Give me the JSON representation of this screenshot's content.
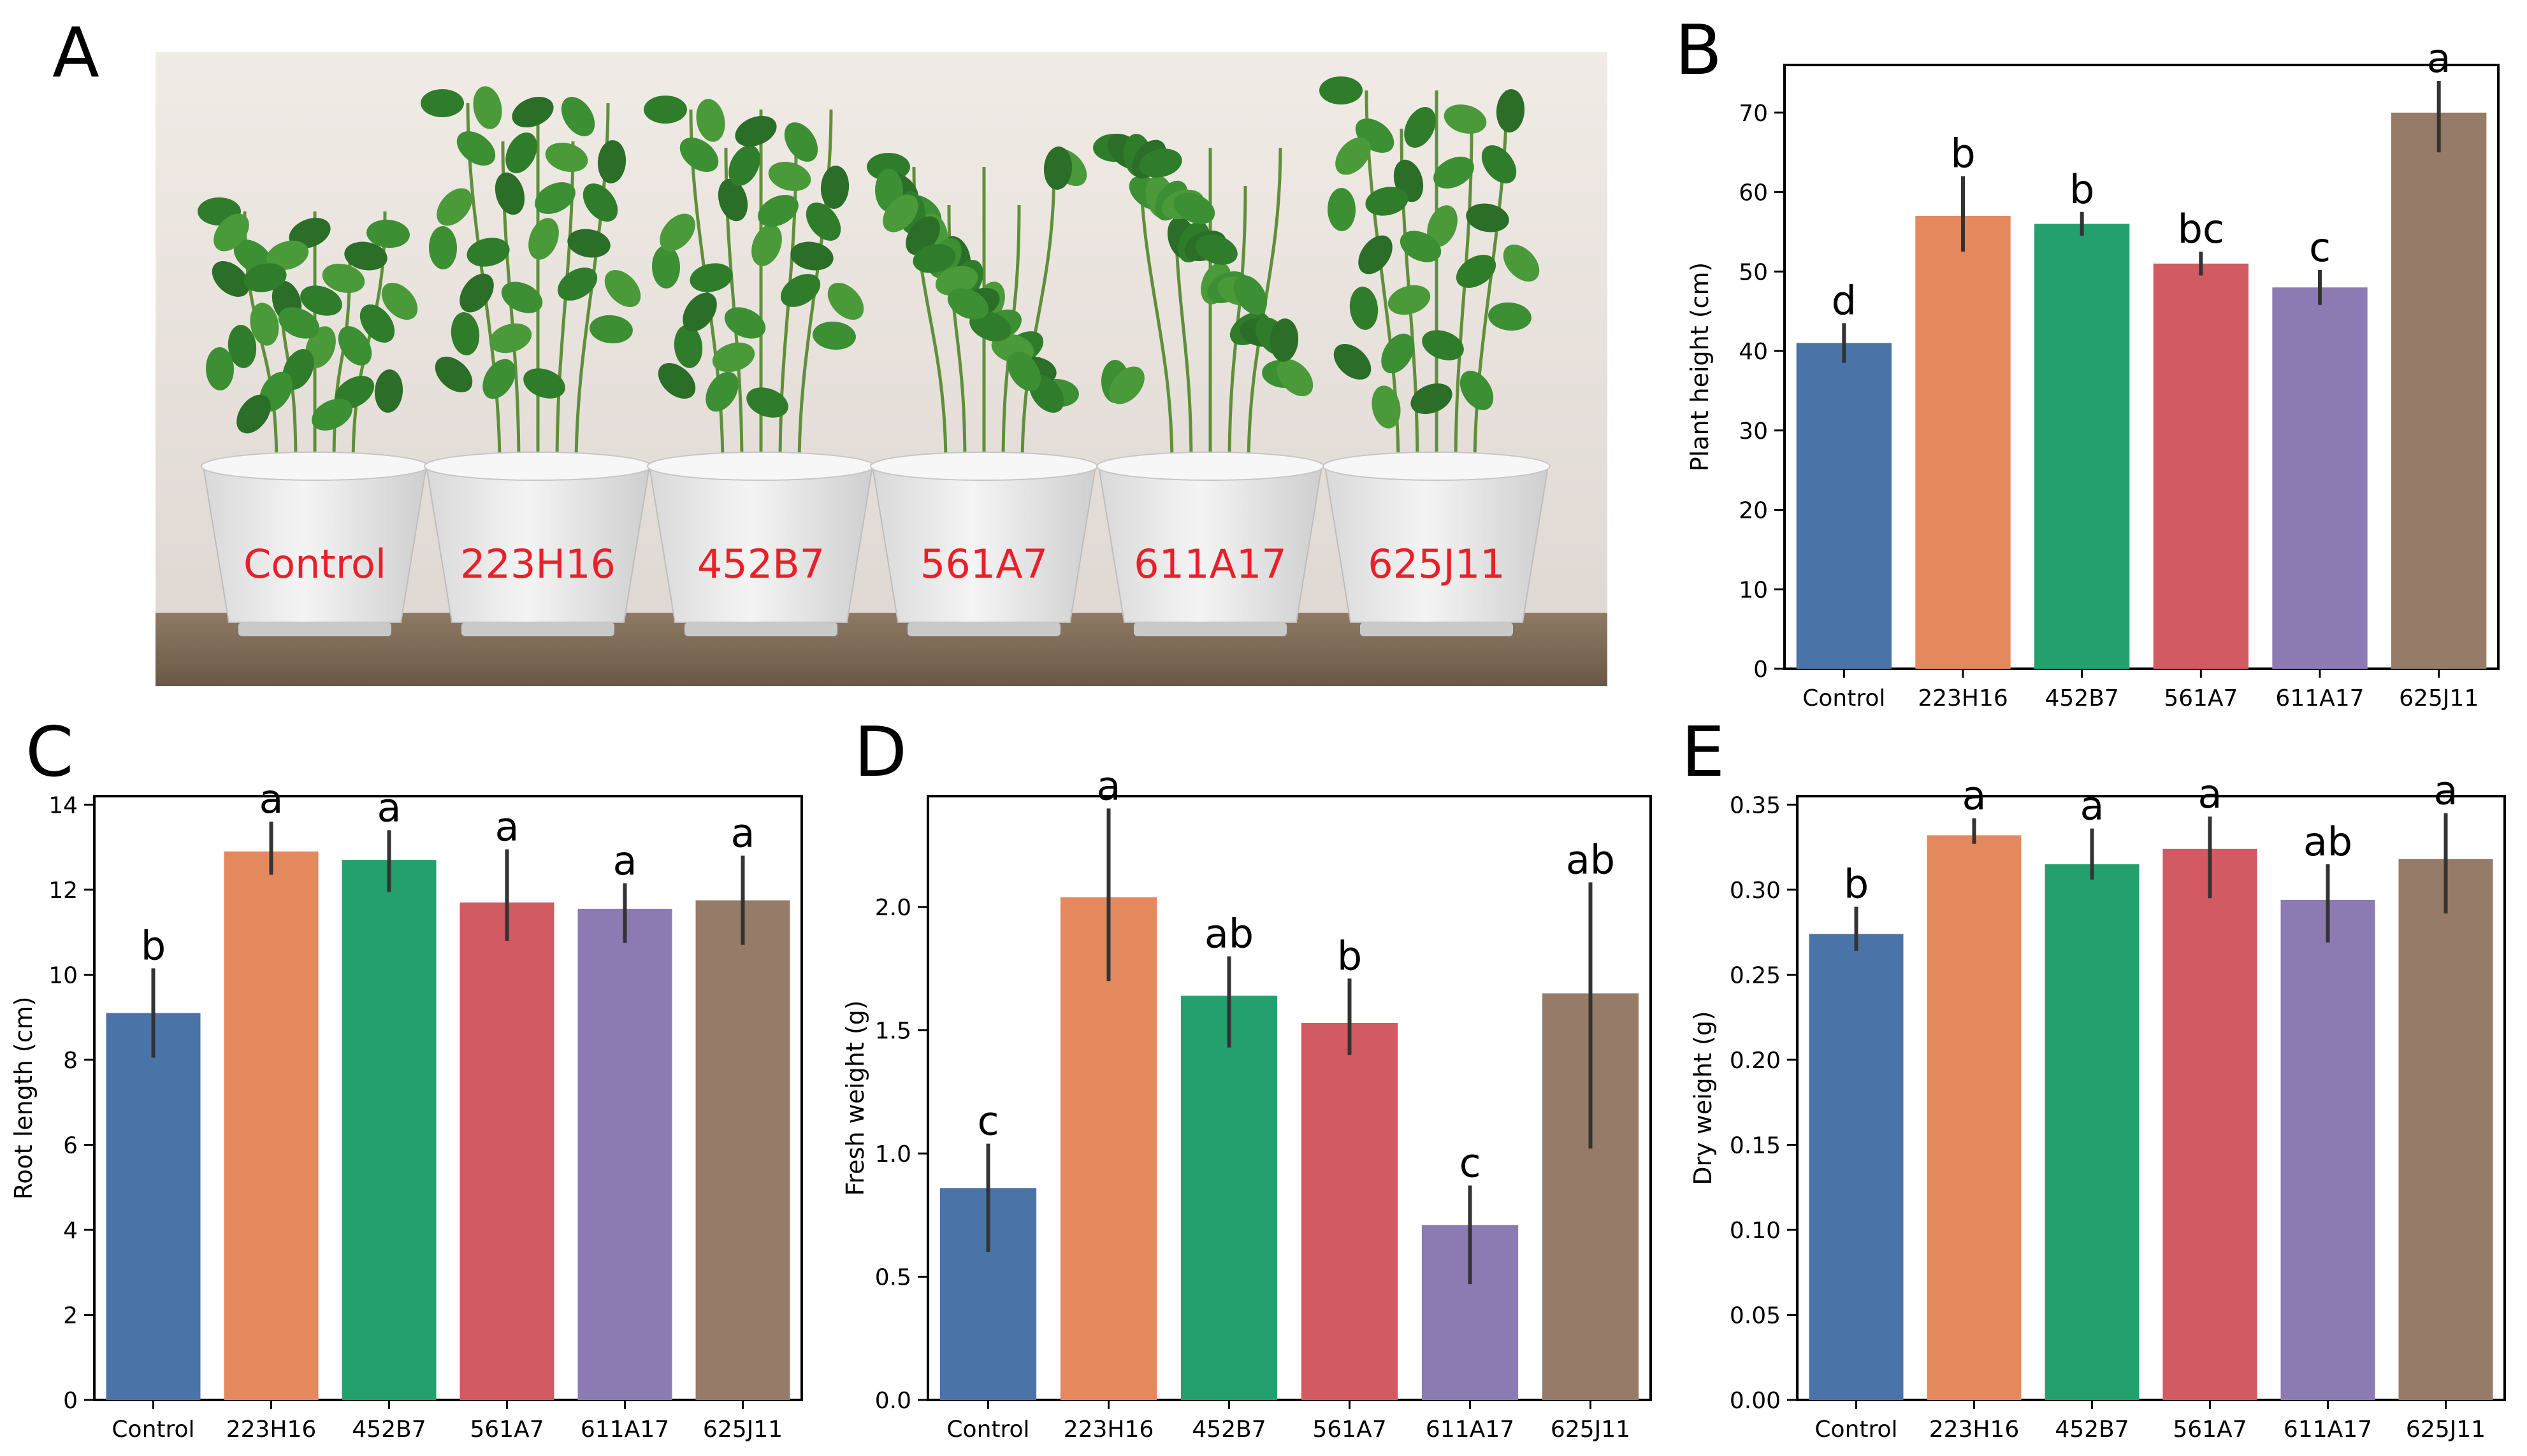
{
  "panels": {
    "a": "A",
    "b": "B",
    "c": "C",
    "d": "D",
    "e": "E"
  },
  "photo": {
    "pot_labels": [
      "Control",
      "223H16",
      "452B7",
      "561A7",
      "611A17",
      "625J11"
    ],
    "label_color": "#e8202a"
  },
  "colors": [
    "#4a74a8",
    "#e4885e",
    "#24a06e",
    "#d15a63",
    "#8c7bb3",
    "#957b68"
  ],
  "chart_data": [
    {
      "id": "B",
      "type": "bar",
      "categories": [
        "Control",
        "223H16",
        "452B7",
        "561A7",
        "611A17",
        "625J11"
      ],
      "values": [
        41,
        57,
        56,
        51,
        48,
        70
      ],
      "error_low": [
        38.5,
        52.5,
        54.5,
        49.5,
        45.8,
        65
      ],
      "error_high": [
        43.5,
        62,
        57.5,
        52.5,
        50.2,
        74
      ],
      "annotations": [
        "d",
        "b",
        "b",
        "bc",
        "c",
        "a"
      ],
      "ylabel": "Plant height (cm)",
      "ylim": [
        0,
        76
      ],
      "yticks": [
        0,
        10,
        20,
        30,
        40,
        50,
        60,
        70
      ],
      "ytick_labels": [
        "0",
        "10",
        "20",
        "30",
        "40",
        "50",
        "60",
        "70"
      ],
      "grid": false
    },
    {
      "id": "C",
      "type": "bar",
      "categories": [
        "Control",
        "223H16",
        "452B7",
        "561A7",
        "611A17",
        "625J11"
      ],
      "values": [
        9.1,
        12.9,
        12.7,
        11.7,
        11.55,
        11.75
      ],
      "error_low": [
        8.05,
        12.35,
        11.95,
        10.8,
        10.75,
        10.7
      ],
      "error_high": [
        10.15,
        13.6,
        13.4,
        12.95,
        12.15,
        12.8
      ],
      "annotations": [
        "b",
        "a",
        "a",
        "a",
        "a",
        "a"
      ],
      "ylabel": "Root length (cm)",
      "ylim": [
        0,
        14.2
      ],
      "yticks": [
        0,
        2,
        4,
        6,
        8,
        10,
        12,
        14
      ],
      "ytick_labels": [
        "0",
        "2",
        "4",
        "6",
        "8",
        "10",
        "12",
        "14"
      ],
      "grid": false
    },
    {
      "id": "D",
      "type": "bar",
      "categories": [
        "Control",
        "223H16",
        "452B7",
        "561A7",
        "611A17",
        "625J11"
      ],
      "values": [
        0.86,
        2.04,
        1.64,
        1.53,
        0.71,
        1.65
      ],
      "error_low": [
        0.6,
        1.7,
        1.43,
        1.4,
        0.47,
        1.02
      ],
      "error_high": [
        1.04,
        2.4,
        1.8,
        1.71,
        0.87,
        2.1
      ],
      "annotations": [
        "c",
        "a",
        "ab",
        "b",
        "c",
        "ab"
      ],
      "ylabel": "Fresh weight (g)",
      "ylim": [
        0,
        2.45
      ],
      "yticks": [
        0,
        0.5,
        1.0,
        1.5,
        2.0
      ],
      "ytick_labels": [
        "0.0",
        "0.5",
        "1.0",
        "1.5",
        "2.0"
      ],
      "grid": false
    },
    {
      "id": "E",
      "type": "bar",
      "categories": [
        "Control",
        "223H16",
        "452B7",
        "561A7",
        "611A17",
        "625J11"
      ],
      "values": [
        0.274,
        0.332,
        0.315,
        0.324,
        0.294,
        0.318
      ],
      "error_low": [
        0.264,
        0.327,
        0.306,
        0.295,
        0.269,
        0.286
      ],
      "error_high": [
        0.29,
        0.342,
        0.336,
        0.343,
        0.315,
        0.345
      ],
      "annotations": [
        "b",
        "a",
        "a",
        "a",
        "ab",
        "a"
      ],
      "ylabel": "Dry weight (g)",
      "ylim": [
        0,
        0.355
      ],
      "yticks": [
        0,
        0.05,
        0.1,
        0.15,
        0.2,
        0.25,
        0.3,
        0.35
      ],
      "ytick_labels": [
        "0.00",
        "0.05",
        "0.10",
        "0.15",
        "0.20",
        "0.25",
        "0.30",
        "0.35"
      ],
      "grid": false
    }
  ]
}
